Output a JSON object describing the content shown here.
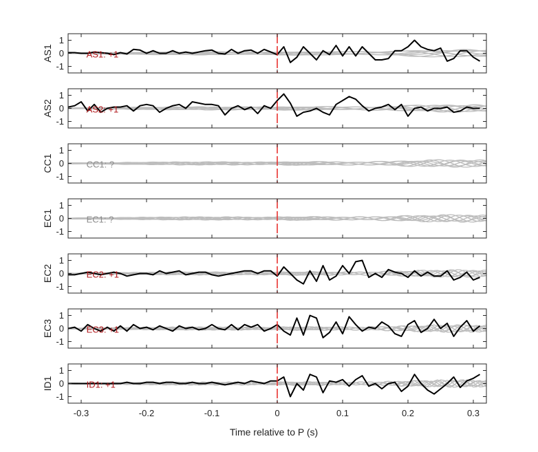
{
  "colors": {
    "trace": "#000000",
    "background_traces": "#bdbdbd",
    "p_marker": "#e8312f",
    "polarity_label_known": "#b2191c",
    "polarity_label_unknown": "#8c8c8c",
    "axes": "#262626"
  },
  "chart_data": {
    "type": "line",
    "xlabel": "Time relative to P (s)",
    "xlim": [
      -0.32,
      0.32
    ],
    "xticks": [
      -0.3,
      -0.2,
      -0.1,
      0,
      0.1,
      0.2,
      0.3
    ],
    "xtick_labels": [
      "-0.3",
      "-0.2",
      "-0.1",
      "0",
      "0.1",
      "0.2",
      "0.3"
    ],
    "ylim": [
      -1.5,
      1.5
    ],
    "yticks": [
      1,
      0,
      -1
    ],
    "ytick_labels": [
      "1",
      "0",
      "-1"
    ],
    "p_marker_x": 0,
    "grid": false,
    "panels": [
      {
        "station": "AS1",
        "label": "AS1: +1",
        "polarity_known": true,
        "trace_x": [
          -0.32,
          -0.31,
          -0.3,
          -0.29,
          -0.28,
          -0.27,
          -0.26,
          -0.25,
          -0.24,
          -0.23,
          -0.22,
          -0.21,
          -0.2,
          -0.19,
          -0.18,
          -0.17,
          -0.16,
          -0.15,
          -0.14,
          -0.13,
          -0.12,
          -0.11,
          -0.1,
          -0.09,
          -0.08,
          -0.07,
          -0.06,
          -0.05,
          -0.04,
          -0.03,
          -0.02,
          -0.01,
          0,
          0.01,
          0.02,
          0.03,
          0.04,
          0.05,
          0.06,
          0.07,
          0.08,
          0.09,
          0.1,
          0.11,
          0.12,
          0.13,
          0.14,
          0.15,
          0.16,
          0.17,
          0.18,
          0.19,
          0.2,
          0.21,
          0.22,
          0.23,
          0.24,
          0.25,
          0.26,
          0.27,
          0.28,
          0.29,
          0.3,
          0.31
        ],
        "trace_y": [
          0.05,
          0.05,
          0.0,
          0.0,
          0.1,
          0.05,
          0.0,
          -0.1,
          0.05,
          -0.05,
          0.3,
          0.25,
          0.0,
          0.2,
          0.0,
          0.0,
          0.2,
          0.0,
          0.1,
          0.0,
          0.1,
          0.2,
          0.25,
          0.0,
          -0.05,
          0.3,
          0.0,
          0.2,
          0.25,
          0.0,
          0.3,
          0.1,
          -0.1,
          0.5,
          -0.7,
          -0.3,
          0.5,
          0.0,
          -0.5,
          0.2,
          -0.1,
          0.6,
          -0.2,
          0.5,
          -0.2,
          0.5,
          0.0,
          -0.5,
          -0.5,
          -0.4,
          0.2,
          0.2,
          0.5,
          1.0,
          0.5,
          0.3,
          0.2,
          0.4,
          -0.6,
          -0.4,
          0.2,
          0.2,
          -0.3,
          -0.6
        ]
      },
      {
        "station": "AS2",
        "label": "AS2: +1",
        "polarity_known": true,
        "trace_x": [
          -0.32,
          -0.31,
          -0.3,
          -0.29,
          -0.28,
          -0.27,
          -0.26,
          -0.25,
          -0.24,
          -0.23,
          -0.22,
          -0.21,
          -0.2,
          -0.19,
          -0.18,
          -0.17,
          -0.16,
          -0.15,
          -0.14,
          -0.13,
          -0.12,
          -0.11,
          -0.1,
          -0.09,
          -0.08,
          -0.07,
          -0.06,
          -0.05,
          -0.04,
          -0.03,
          -0.02,
          -0.01,
          0,
          0.01,
          0.02,
          0.03,
          0.04,
          0.05,
          0.06,
          0.07,
          0.08,
          0.09,
          0.1,
          0.11,
          0.12,
          0.13,
          0.14,
          0.15,
          0.16,
          0.17,
          0.18,
          0.19,
          0.2,
          0.21,
          0.22,
          0.23,
          0.24,
          0.25,
          0.26,
          0.27,
          0.28,
          0.29,
          0.3,
          0.31
        ],
        "trace_y": [
          0.1,
          0.2,
          0.5,
          -0.2,
          0.3,
          -0.3,
          0.0,
          0.1,
          0.1,
          0.2,
          -0.2,
          0.2,
          0.3,
          0.2,
          -0.3,
          0.0,
          0.2,
          0.3,
          0.0,
          0.5,
          0.4,
          0.3,
          0.3,
          0.2,
          -0.5,
          0.0,
          0.2,
          -0.1,
          0.1,
          -0.4,
          0.2,
          0.0,
          0.6,
          1.1,
          0.4,
          -0.6,
          -0.3,
          -0.2,
          0.0,
          -0.3,
          -0.5,
          0.3,
          0.6,
          0.9,
          0.7,
          0.2,
          -0.2,
          0.0,
          0.1,
          0.3,
          -0.1,
          0.3,
          -0.6,
          0.0,
          0.1,
          -0.2,
          0.0,
          0.0,
          0.1,
          -0.3,
          -0.2,
          0.1,
          0.0,
          0.0
        ]
      },
      {
        "station": "CC1",
        "label": "CC1: ?",
        "polarity_known": false,
        "trace_x": [],
        "trace_y": []
      },
      {
        "station": "EC1",
        "label": "EC1: ?",
        "polarity_known": false,
        "trace_x": [],
        "trace_y": []
      },
      {
        "station": "EC2",
        "label": "EC2: +1",
        "polarity_known": true,
        "trace_x": [
          -0.32,
          -0.31,
          -0.3,
          -0.29,
          -0.28,
          -0.27,
          -0.26,
          -0.25,
          -0.24,
          -0.23,
          -0.22,
          -0.21,
          -0.2,
          -0.19,
          -0.18,
          -0.17,
          -0.16,
          -0.15,
          -0.14,
          -0.13,
          -0.12,
          -0.11,
          -0.1,
          -0.09,
          -0.08,
          -0.07,
          -0.06,
          -0.05,
          -0.04,
          -0.03,
          -0.02,
          -0.01,
          0,
          0.01,
          0.02,
          0.03,
          0.04,
          0.05,
          0.06,
          0.07,
          0.08,
          0.09,
          0.1,
          0.11,
          0.12,
          0.13,
          0.14,
          0.15,
          0.16,
          0.17,
          0.18,
          0.19,
          0.2,
          0.21,
          0.22,
          0.23,
          0.24,
          0.25,
          0.26,
          0.27,
          0.28,
          0.29,
          0.3,
          0.31
        ],
        "trace_y": [
          -0.1,
          -0.1,
          0.0,
          0.1,
          0.0,
          -0.1,
          0.0,
          0.1,
          0.0,
          -0.2,
          -0.1,
          0.0,
          0.0,
          -0.1,
          0.2,
          0.0,
          0.1,
          0.2,
          -0.1,
          0.0,
          0.1,
          0.1,
          -0.1,
          -0.2,
          -0.1,
          0.0,
          0.1,
          0.2,
          0.2,
          0.0,
          0.2,
          0.2,
          -0.2,
          0.5,
          0.0,
          -0.5,
          -0.8,
          0.2,
          -0.6,
          0.6,
          -0.5,
          -0.2,
          0.6,
          0.0,
          0.9,
          1.0,
          -0.3,
          0.0,
          -0.3,
          0.3,
          0.1,
          0.0,
          -0.3,
          0.2,
          -0.2,
          0.1,
          -0.2,
          -0.2,
          0.2,
          -0.5,
          -0.3,
          0.1,
          -0.5,
          -0.3
        ]
      },
      {
        "station": "EC3",
        "label": "EC3: +1",
        "polarity_known": true,
        "trace_x": [
          -0.32,
          -0.31,
          -0.3,
          -0.29,
          -0.28,
          -0.27,
          -0.26,
          -0.25,
          -0.24,
          -0.23,
          -0.22,
          -0.21,
          -0.2,
          -0.19,
          -0.18,
          -0.17,
          -0.16,
          -0.15,
          -0.14,
          -0.13,
          -0.12,
          -0.11,
          -0.1,
          -0.09,
          -0.08,
          -0.07,
          -0.06,
          -0.05,
          -0.04,
          -0.03,
          -0.02,
          -0.01,
          0,
          0.01,
          0.02,
          0.03,
          0.04,
          0.05,
          0.06,
          0.07,
          0.08,
          0.09,
          0.1,
          0.11,
          0.12,
          0.13,
          0.14,
          0.15,
          0.16,
          0.17,
          0.18,
          0.19,
          0.2,
          0.21,
          0.22,
          0.23,
          0.24,
          0.25,
          0.26,
          0.27,
          0.28,
          0.29,
          0.3,
          0.31
        ],
        "trace_y": [
          0.0,
          0.1,
          -0.2,
          0.3,
          0.0,
          -0.2,
          0.1,
          -0.2,
          0.2,
          -0.2,
          0.3,
          0.0,
          0.1,
          -0.1,
          0.2,
          0.0,
          -0.2,
          0.2,
          0.0,
          0.1,
          -0.1,
          0.0,
          0.3,
          0.0,
          -0.1,
          0.3,
          -0.1,
          0.3,
          0.1,
          0.3,
          -0.2,
          0.0,
          0.3,
          -0.2,
          -0.5,
          0.8,
          -0.5,
          1.0,
          0.8,
          -0.7,
          -0.3,
          0.5,
          -0.4,
          0.9,
          0.3,
          -0.2,
          0.1,
          0.0,
          0.5,
          0.2,
          -0.4,
          -0.6,
          0.3,
          0.6,
          -0.3,
          0.0,
          0.7,
          0.0,
          0.4,
          -0.6,
          0.1,
          0.6,
          -0.2,
          0.2
        ]
      },
      {
        "station": "ID1",
        "label": "ID1: +1",
        "polarity_known": true,
        "trace_x": [
          -0.32,
          -0.31,
          -0.3,
          -0.29,
          -0.28,
          -0.27,
          -0.26,
          -0.25,
          -0.24,
          -0.23,
          -0.22,
          -0.21,
          -0.2,
          -0.19,
          -0.18,
          -0.17,
          -0.16,
          -0.15,
          -0.14,
          -0.13,
          -0.12,
          -0.11,
          -0.1,
          -0.09,
          -0.08,
          -0.07,
          -0.06,
          -0.05,
          -0.04,
          -0.03,
          -0.02,
          -0.01,
          0,
          0.01,
          0.02,
          0.03,
          0.04,
          0.05,
          0.06,
          0.07,
          0.08,
          0.09,
          0.1,
          0.11,
          0.12,
          0.13,
          0.14,
          0.15,
          0.16,
          0.17,
          0.18,
          0.19,
          0.2,
          0.21,
          0.22,
          0.23,
          0.24,
          0.25,
          0.26,
          0.27,
          0.28,
          0.29,
          0.3,
          0.31
        ],
        "trace_y": [
          0.0,
          0.0,
          0.0,
          0.0,
          0.0,
          0.0,
          0.0,
          0.0,
          0.0,
          0.1,
          0.0,
          0.0,
          0.1,
          0.1,
          0.0,
          0.1,
          0.1,
          0.0,
          0.0,
          0.1,
          0.0,
          0.0,
          0.1,
          0.0,
          -0.1,
          0.0,
          0.1,
          0.0,
          0.2,
          0.1,
          0.0,
          0.2,
          0.2,
          0.5,
          -1.0,
          0.0,
          -0.5,
          0.7,
          0.5,
          -0.7,
          0.2,
          0.1,
          0.3,
          -0.2,
          0.3,
          0.6,
          -0.2,
          0.0,
          -0.4,
          0.0,
          0.1,
          -0.6,
          -0.2,
          0.7,
          0.0,
          -0.5,
          -0.8,
          -0.4,
          0.0,
          0.5,
          -0.3,
          0.2,
          0.4,
          0.7
        ]
      }
    ]
  }
}
